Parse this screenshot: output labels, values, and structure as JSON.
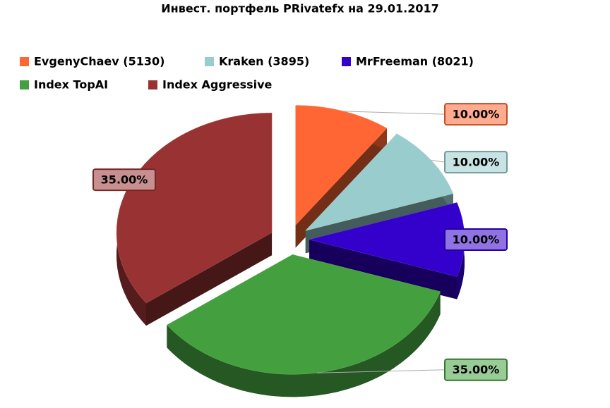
{
  "chart_data": {
    "type": "pie",
    "title": "Инвест. портфель PRivatefx на 29.01.2017",
    "categories": [
      "EvgenyChaev (5130)",
      "Kraken (3895)",
      "MrFreeman (8021)",
      "Index TopAI",
      "Index Aggressive"
    ],
    "values": [
      10,
      10,
      10,
      35,
      35
    ],
    "value_labels": [
      "10.00%",
      "10.00%",
      "10.00%",
      "35.00%",
      "35.00%"
    ],
    "colors": [
      "#ff6633",
      "#99cccc",
      "#3300cc",
      "#44a03e",
      "#993333"
    ],
    "legend": "top"
  }
}
